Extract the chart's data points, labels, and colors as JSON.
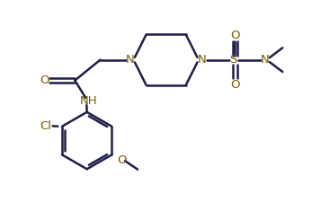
{
  "bg_color": "#ffffff",
  "line_color": "#1e1e4a",
  "label_color": "#7a5c00",
  "line_width": 1.8,
  "font_size": 9.5,
  "fig_width": 3.57,
  "fig_height": 2.25,
  "dpi": 100,
  "xlim": [
    0,
    10
  ],
  "ylim": [
    0,
    6.3
  ]
}
